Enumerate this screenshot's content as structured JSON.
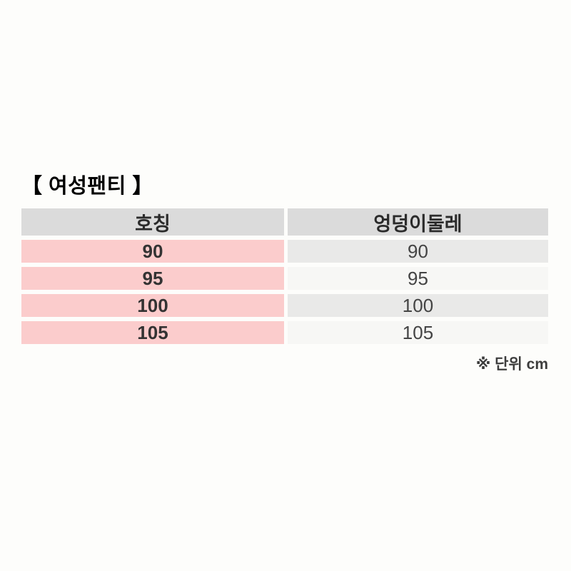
{
  "page": {
    "background_color": "#fdfdfb",
    "title": "【 여성팬티 】",
    "footnote": "※ 단위 cm"
  },
  "table": {
    "columns": [
      {
        "label": "호칭"
      },
      {
        "label": "엉덩이둘레"
      }
    ],
    "rows": [
      {
        "size": "90",
        "hip": "90"
      },
      {
        "size": "95",
        "hip": "95"
      },
      {
        "size": "100",
        "hip": "100"
      },
      {
        "size": "105",
        "hip": "105"
      }
    ],
    "colors": {
      "header_bg": "#dbdbdb",
      "size_column_bg": "#fbcccc",
      "hip_row_dark_bg": "#e9e9e8",
      "hip_row_light_bg": "#f7f7f5"
    }
  },
  "chart_data": {
    "type": "table",
    "title": "【 여성팬티 】",
    "columns": [
      "호칭",
      "엉덩이둘레"
    ],
    "rows": [
      [
        "90",
        "90"
      ],
      [
        "95",
        "95"
      ],
      [
        "100",
        "100"
      ],
      [
        "105",
        "105"
      ]
    ],
    "unit_note": "※ 단위 cm",
    "unit": "cm"
  }
}
